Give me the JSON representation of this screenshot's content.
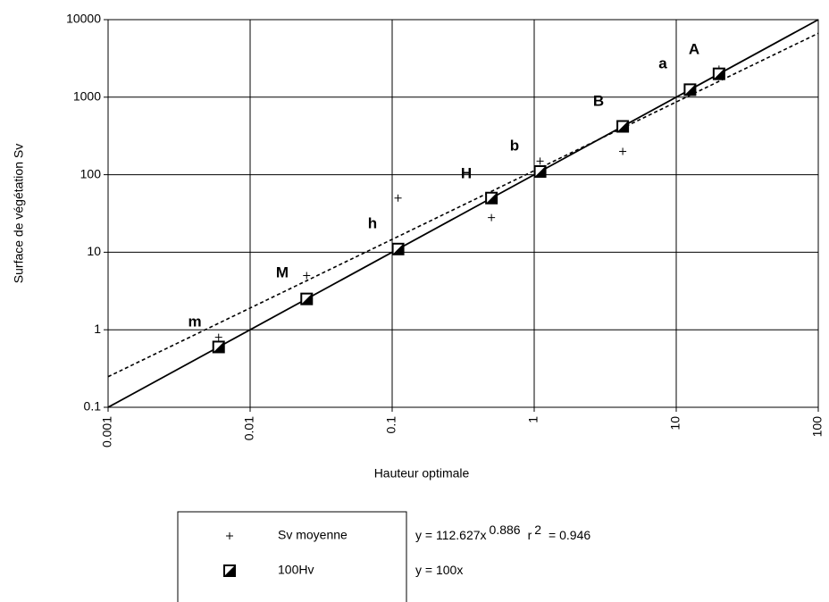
{
  "chart_data": {
    "type": "scatter",
    "x_label": "Hauteur optimale",
    "y_label": "Surface de végétation Sv",
    "x_scale": "log",
    "y_scale": "log",
    "xlim": [
      0.001,
      100
    ],
    "ylim": [
      0.1,
      10000
    ],
    "xticks": [
      0.001,
      0.01,
      0.1,
      1,
      10,
      100
    ],
    "yticks": [
      0.1,
      1,
      10,
      100,
      1000,
      10000
    ],
    "grid": true,
    "annotations": [
      "m",
      "M",
      "h",
      "H",
      "b",
      "B",
      "a",
      "A"
    ],
    "series": [
      {
        "name": "Sv moyenne",
        "marker": "plus",
        "color": "#000000",
        "x": [
          0.006,
          0.025,
          0.11,
          0.5,
          1.1,
          4.2,
          12.5,
          20
        ],
        "values": [
          0.8,
          5,
          50,
          28,
          150,
          200,
          1250,
          2300
        ],
        "equation": [
          "y = 112.627x",
          "0.886",
          "r",
          "2",
          "= 0.946"
        ],
        "fit_line": {
          "x": [
            0.001,
            100
          ],
          "values": [
            0.248,
            6665
          ],
          "style": "dashed"
        }
      },
      {
        "name": "100Hv",
        "marker": "half-square",
        "color": "#000000",
        "x": [
          0.006,
          0.025,
          0.11,
          0.5,
          1.1,
          4.2,
          12.5,
          20
        ],
        "values": [
          0.6,
          2.5,
          11,
          50,
          110,
          420,
          1250,
          2000
        ],
        "equation": [
          "y = 100x"
        ],
        "fit_line": {
          "x": [
            0.001,
            100
          ],
          "values": [
            0.1,
            10000
          ],
          "style": "solid"
        }
      }
    ]
  }
}
